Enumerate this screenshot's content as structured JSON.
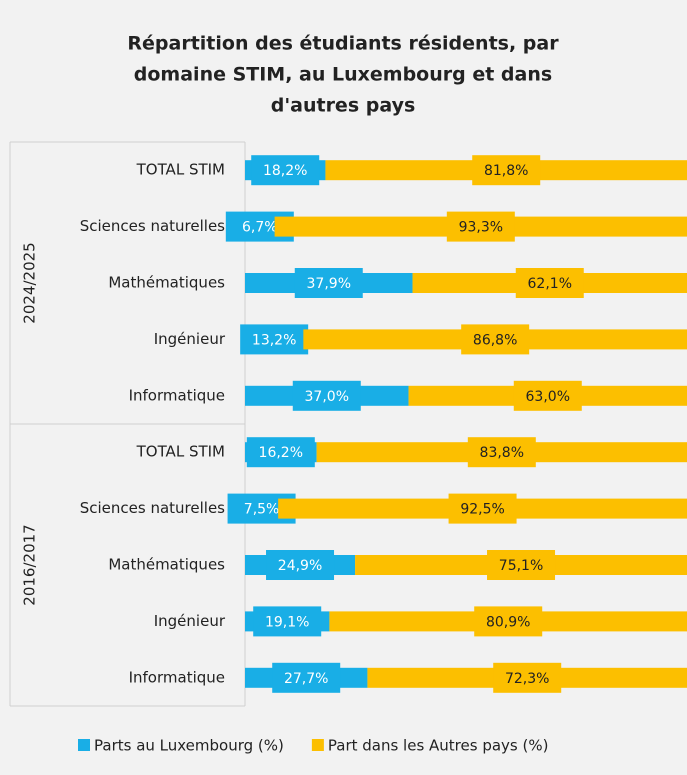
{
  "chart_data": {
    "type": "bar",
    "orientation": "horizontal",
    "stacked": true,
    "title_lines": [
      "Répartition des étudiants résidents, par",
      "domaine STIM, au Luxembourg et dans",
      "d'autres pays"
    ],
    "category_groups": [
      "2024/2025",
      "2016/2017"
    ],
    "categories": [
      "TOTAL STIM",
      "Sciences naturelles",
      "Mathématiques",
      "Ingénieur",
      "Informatique",
      "TOTAL STIM",
      "Sciences naturelles",
      "Mathématiques",
      "Ingénieur",
      "Informatique"
    ],
    "series": [
      {
        "name": "Parts au Luxembourg (%)",
        "color": "#19aee6",
        "label_color": "#ffffff",
        "values": [
          18.2,
          6.7,
          37.9,
          13.2,
          37.0,
          16.2,
          7.5,
          24.9,
          19.1,
          27.7
        ],
        "value_labels": [
          "18,2%",
          "6,7%",
          "37,9%",
          "13,2%",
          "37,0%",
          "16,2%",
          "7,5%",
          "24,9%",
          "19,1%",
          "27,7%"
        ]
      },
      {
        "name": "Part dans les Autres pays (%)",
        "color": "#fcbf00",
        "label_color": "#222222",
        "values": [
          81.8,
          93.3,
          62.1,
          86.8,
          63.0,
          83.8,
          92.5,
          75.1,
          80.9,
          72.3
        ],
        "value_labels": [
          "81,8%",
          "93,3%",
          "62,1%",
          "86,8%",
          "63,0%",
          "83,8%",
          "92,5%",
          "75,1%",
          "80,9%",
          "72,3%"
        ]
      }
    ],
    "xlim": [
      0,
      100
    ],
    "legend": "bottom"
  }
}
